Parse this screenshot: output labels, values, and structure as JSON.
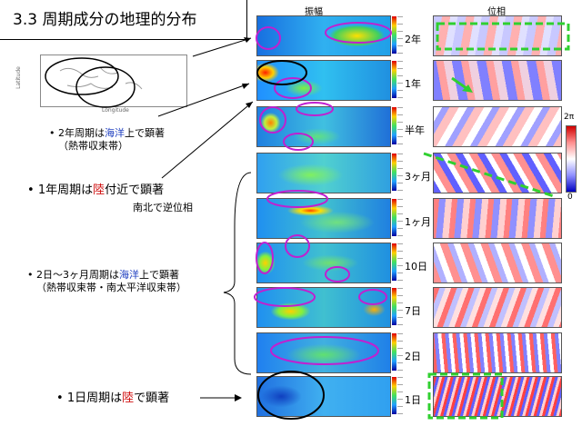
{
  "title": "3.3 周期成分の地理的分布",
  "headers": {
    "amplitude": "振幅",
    "phase": "位相"
  },
  "rows": [
    {
      "label": "2年"
    },
    {
      "label": "1年"
    },
    {
      "label": "半年"
    },
    {
      "label": "3ヶ月"
    },
    {
      "label": "1ヶ月"
    },
    {
      "label": "10日"
    },
    {
      "label": "7日"
    },
    {
      "label": "2日"
    },
    {
      "label": "1日"
    }
  ],
  "phase_colorbar": {
    "top": "2π",
    "bottom": "0"
  },
  "notes": {
    "n1": {
      "bullet": "•",
      "a": "2年周期は",
      "b": "海洋",
      "c": "上で顕著",
      "d": "（熱帯収束帯）"
    },
    "n2": {
      "bullet": "•",
      "a": "1年周期は",
      "b": "陸",
      "c": "付近で顕著",
      "sub": "南北で逆位相"
    },
    "n3": {
      "bullet": "•",
      "a": "2日〜3ヶ月周期は",
      "b": "海洋",
      "c": "上で顕著",
      "d": "（熱帯収束帯・南太平洋収束帯）"
    },
    "n4": {
      "bullet": "•",
      "a": "1日周期は",
      "b": "陸",
      "c": "で顕著"
    }
  },
  "inset_map": {
    "ylabel": "Latitude",
    "xlabel": "Longitude"
  }
}
